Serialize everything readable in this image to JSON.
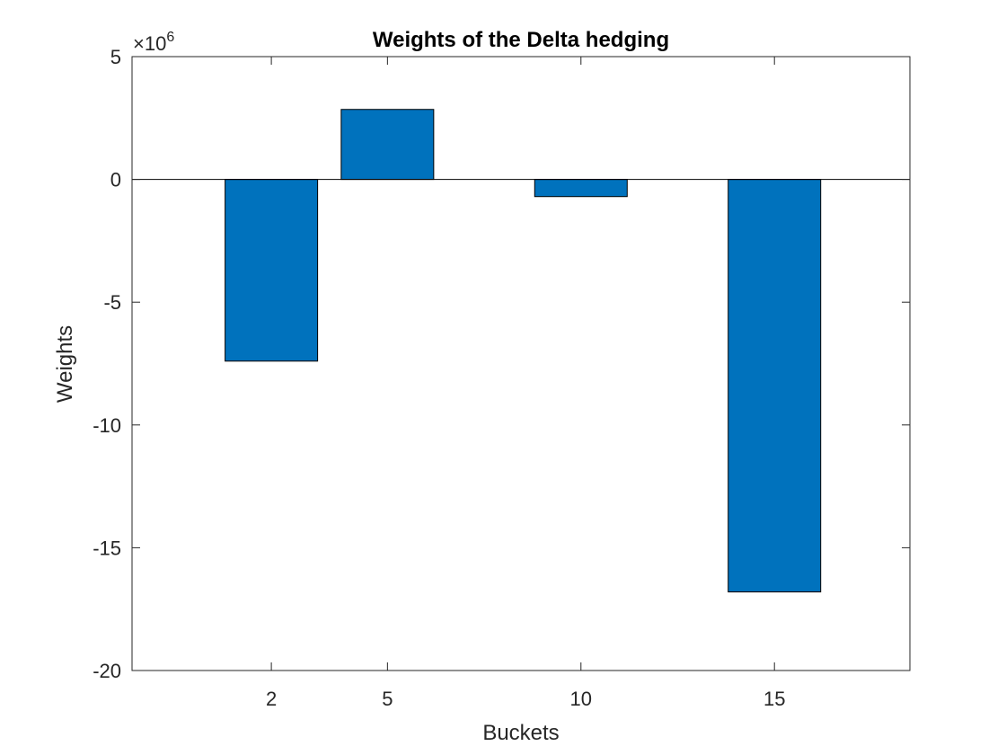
{
  "chart_data": {
    "type": "bar",
    "title": "Weights of the Delta hedging",
    "xlabel": "Buckets",
    "ylabel": "Weights",
    "categories": [
      "2",
      "5",
      "10",
      "15"
    ],
    "x": [
      2,
      5,
      10,
      15
    ],
    "values": [
      -7400000,
      2850000,
      -700000,
      -16800000
    ],
    "xlim": [
      -1.6,
      18.5
    ],
    "ylim": [
      -20000000,
      5000000
    ],
    "yticks": [
      5,
      0,
      -5,
      -10,
      -15,
      -20
    ],
    "ytick_labels": [
      "5",
      "0",
      "-5",
      "-10",
      "-15",
      "-20"
    ],
    "y_exponent_label": "×10",
    "y_exponent_power": "6",
    "y_exponent": 6,
    "grid": false,
    "legend": "none",
    "colors": {
      "bar": "#0072BD",
      "bar_edge": "#000000",
      "axis": "#262626",
      "baseline": "#000000"
    }
  }
}
